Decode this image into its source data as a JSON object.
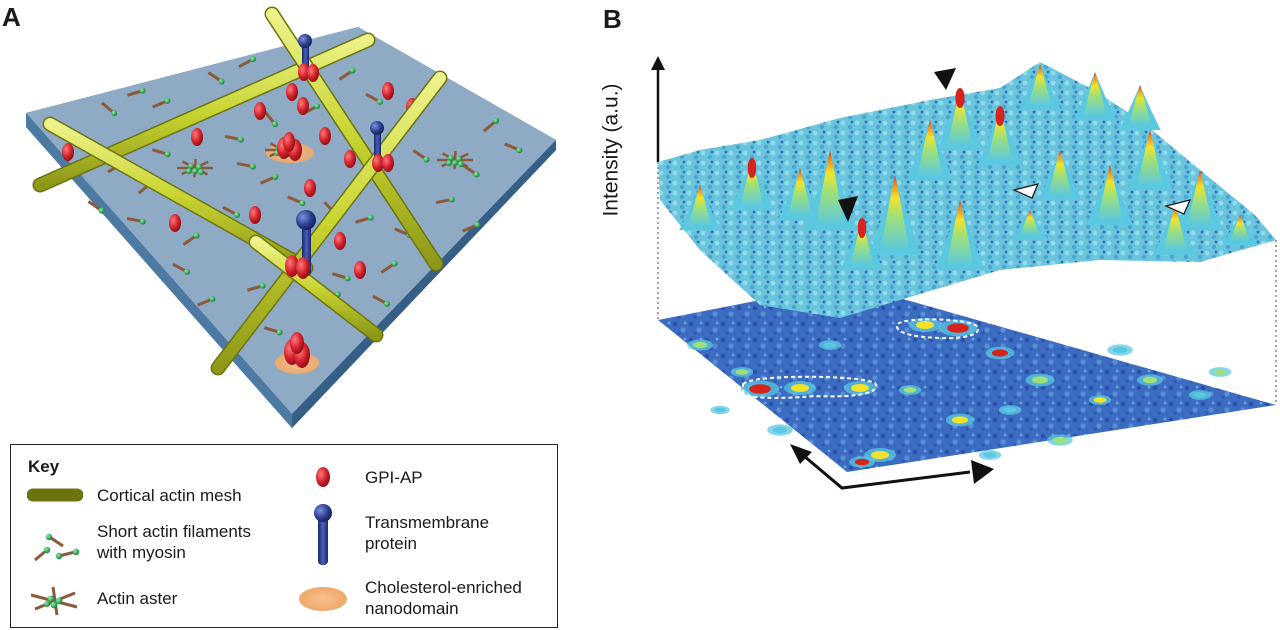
{
  "panels": {
    "a_label": "A",
    "b_label": "B"
  },
  "key": {
    "title": "Key",
    "items": [
      {
        "label": "Cortical actin mesh",
        "icon": "actin-rod-icon"
      },
      {
        "label": "Short actin filaments\nwith myosin",
        "icon": "short-filament-icon"
      },
      {
        "label": "Actin aster",
        "icon": "actin-aster-icon"
      },
      {
        "label": "GPI-AP",
        "icon": "gpi-ap-icon"
      },
      {
        "label": "Transmembrane\nprotein",
        "icon": "transmembrane-protein-icon"
      },
      {
        "label": "Cholesterol-enriched\nnanodomain",
        "icon": "nanodomain-icon"
      }
    ]
  },
  "panel_b": {
    "y_axis_label": "Intensity (a.u.)"
  },
  "colors": {
    "membrane_top": "#8eaac4",
    "membrane_side": "#3d6a92",
    "actin_rod": "#c8d430",
    "gpi_ap": "#d0202a",
    "transmembrane": "#2b3f8e",
    "myosin_dot": "#1fa34a",
    "filament": "#8a5a3a",
    "nanodomain": "#f2b27a",
    "surface_low": "#2d5bb0",
    "surface_mid": "#59c8e0",
    "surface_high": "#f2e32a",
    "surface_peak": "#d8231d"
  }
}
